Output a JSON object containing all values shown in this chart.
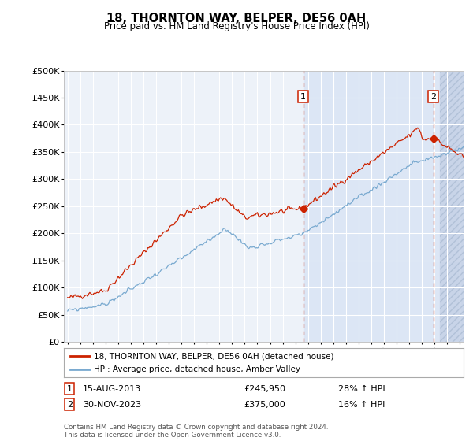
{
  "title": "18, THORNTON WAY, BELPER, DE56 0AH",
  "subtitle": "Price paid vs. HM Land Registry's House Price Index (HPI)",
  "ylim": [
    0,
    500000
  ],
  "yticks": [
    0,
    50000,
    100000,
    150000,
    200000,
    250000,
    300000,
    350000,
    400000,
    450000,
    500000
  ],
  "sale1_date": "15-AUG-2013",
  "sale1_price": 245950,
  "sale1_hpi_pct": "28%",
  "sale2_date": "30-NOV-2023",
  "sale2_price": 375000,
  "sale2_hpi_pct": "16%",
  "sale1_x": 2013.62,
  "sale2_x": 2023.92,
  "legend_label1": "18, THORNTON WAY, BELPER, DE56 0AH (detached house)",
  "legend_label2": "HPI: Average price, detached house, Amber Valley",
  "footnote": "Contains HM Land Registry data © Crown copyright and database right 2024.\nThis data is licensed under the Open Government Licence v3.0.",
  "hpi_color": "#7aaad0",
  "price_color": "#cc2200",
  "bg_plot": "#edf2f9",
  "bg_sale1": "#dce6f5",
  "bg_hatch_color": "#c8d4e8",
  "vline_color": "#cc2200",
  "grid_color": "#ffffff",
  "marker_color": "#cc2200",
  "xmin": 1994.7,
  "xmax": 2026.3
}
